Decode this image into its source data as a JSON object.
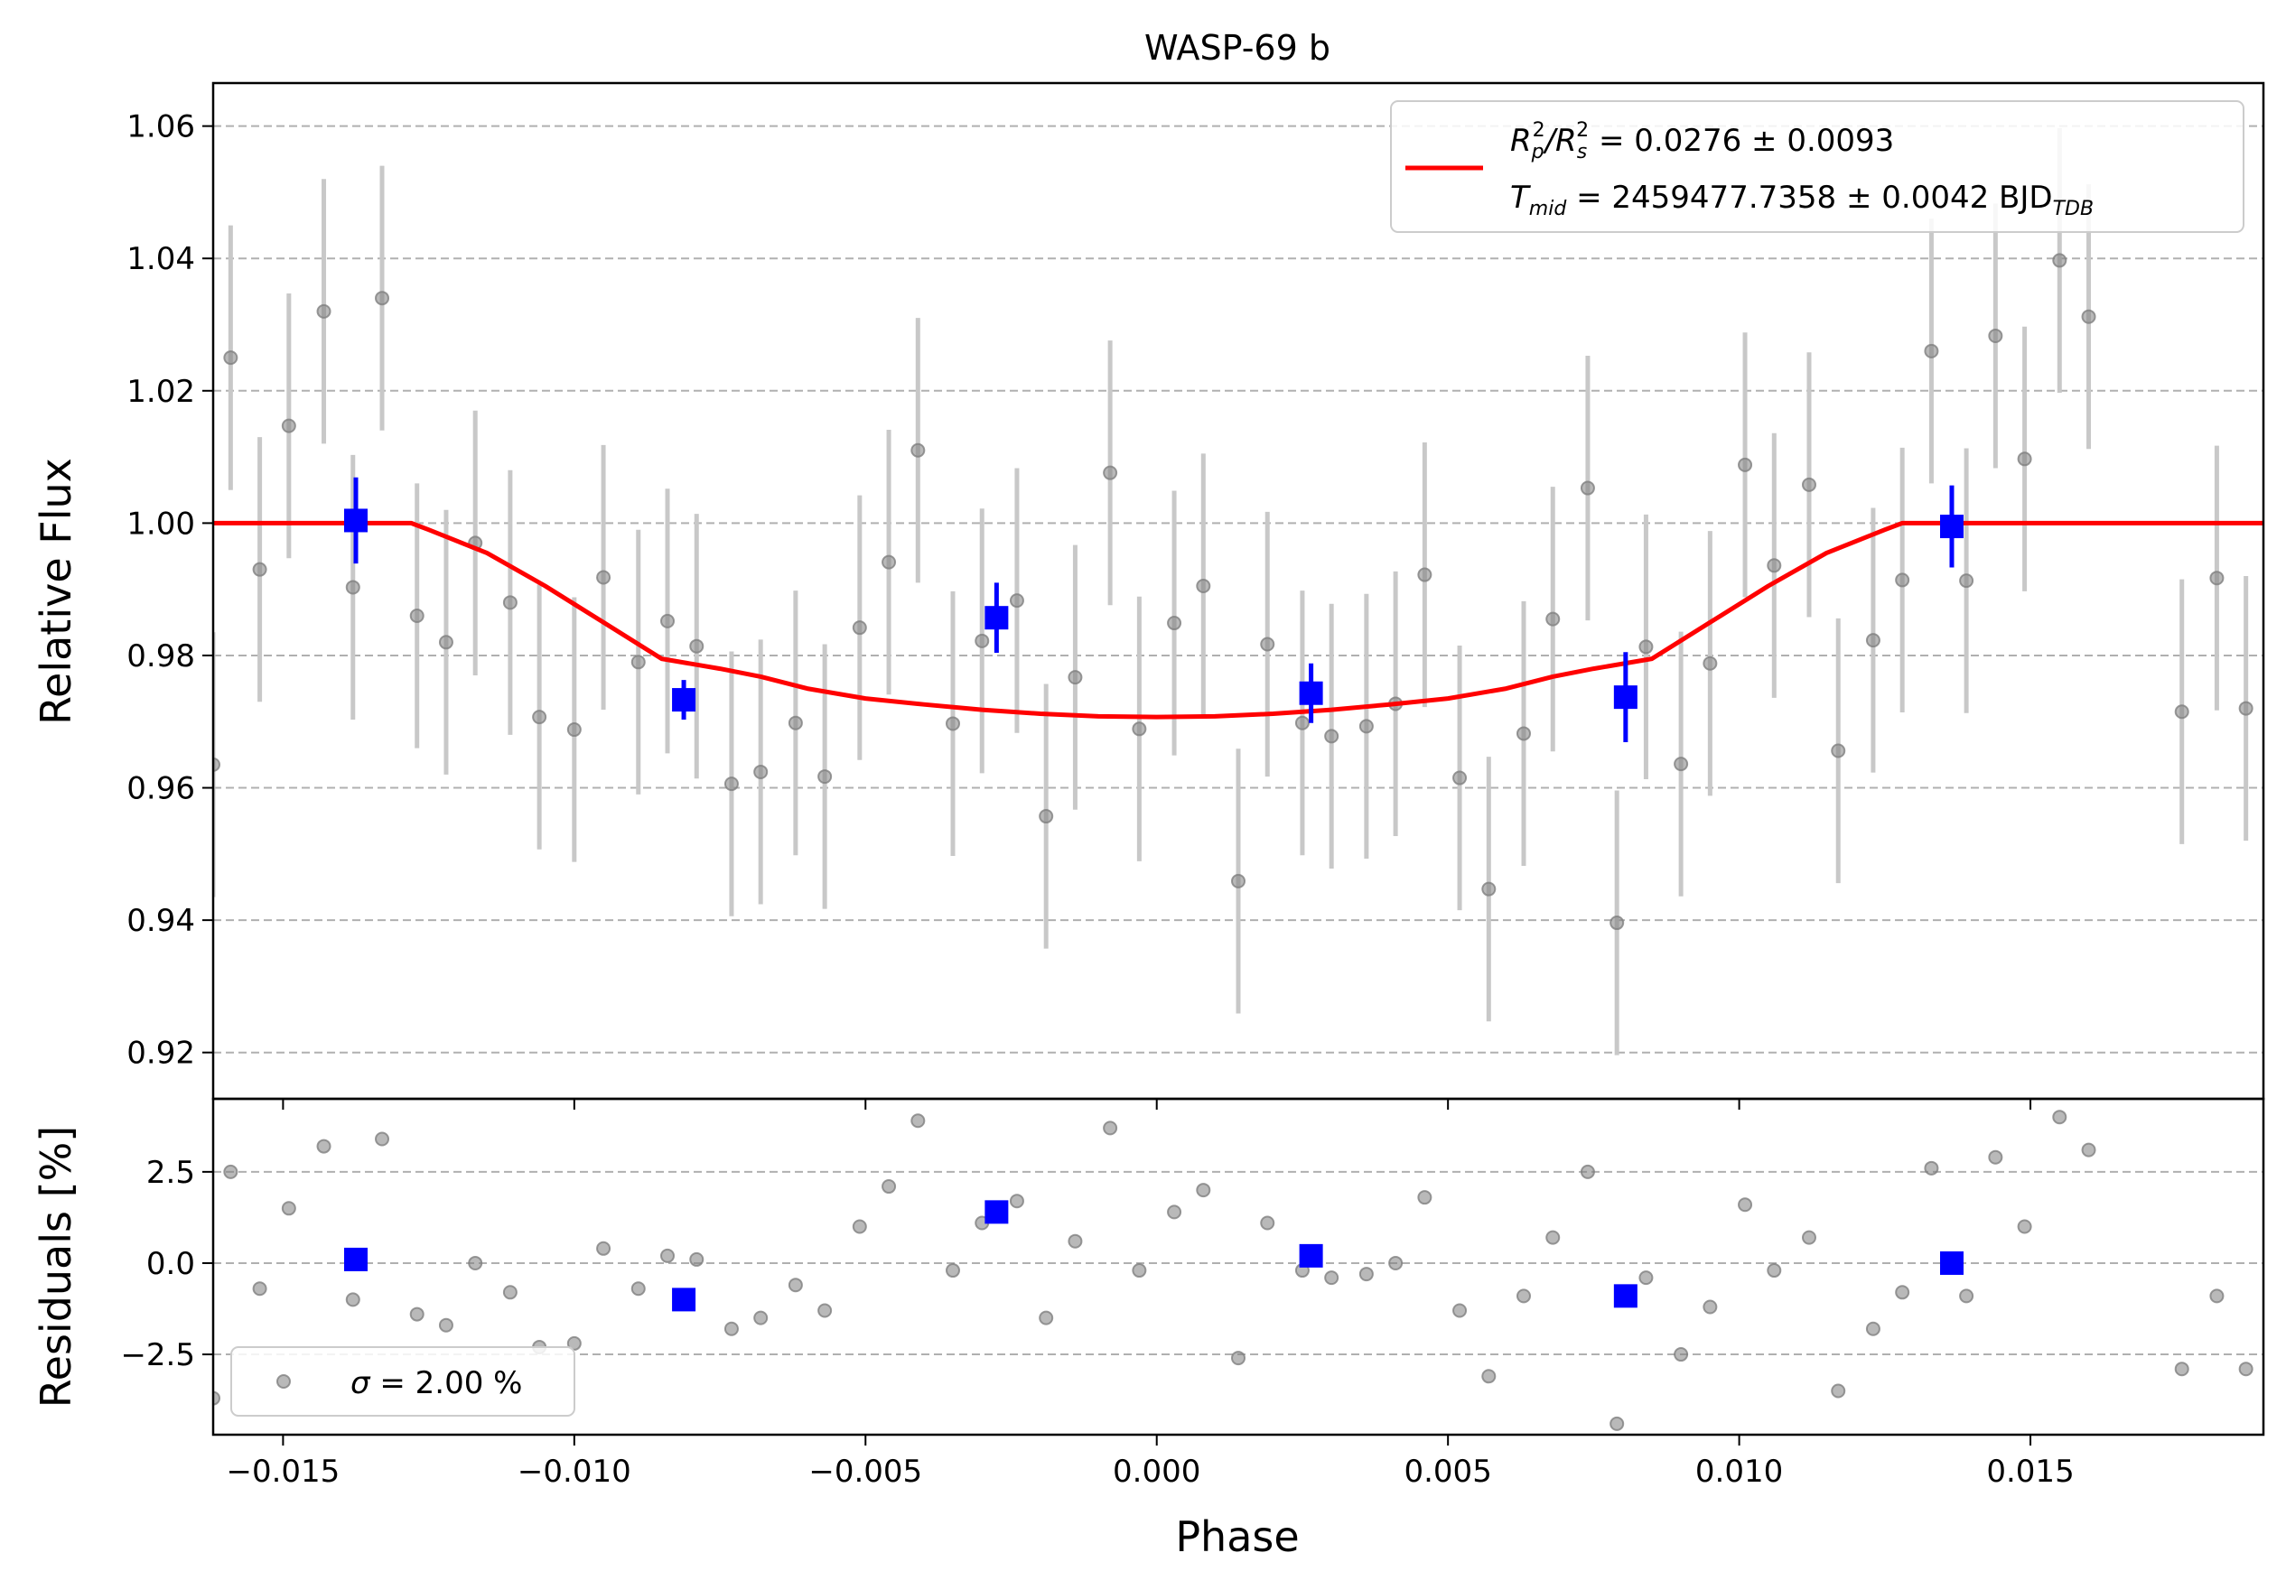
{
  "chart_data": [
    {
      "type": "scatter",
      "title": "WASP-69 b",
      "xlabel": "",
      "ylabel": "Relative Flux",
      "xlim": [
        -0.0162,
        0.019
      ],
      "ylim": [
        0.913,
        1.0665
      ],
      "xticks": [
        -0.015,
        -0.01,
        -0.005,
        0.0,
        0.005,
        0.01,
        0.015
      ],
      "yticks": [
        0.92,
        0.94,
        0.96,
        0.98,
        1.0,
        1.02,
        1.04,
        1.06
      ],
      "ytick_labels": [
        "0.92",
        "0.94",
        "0.96",
        "0.98",
        "1.00",
        "1.02",
        "1.04",
        "1.06"
      ],
      "grid": "horizontal dashed",
      "legend_placement": "top-right",
      "legend": {
        "line1_prefix": "R",
        "line1_sub1": "p",
        "line1_sup1": "2",
        "line1_sep": "/R",
        "line1_sub2": "s",
        "line1_sup2": "2",
        "line1_value": " = 0.0276 ± 0.0093",
        "line2_prefix": "T",
        "line2_sub": "mid",
        "line2_value": " = 2459477.7358 ± 0.0042 BJD",
        "line2_unit_sub": "TDB"
      },
      "colors": {
        "data": "#808080",
        "errorbar": "#c8c8c8",
        "binned": "#0000ff",
        "model": "#ff0000",
        "grid": "#b0b0b0"
      },
      "series": [
        {
          "kind": "raw",
          "error": 0.02,
          "points": [
            [
              -0.0162,
              0.9635
            ],
            [
              -0.0159,
              1.025
            ],
            [
              -0.0154,
              0.993
            ],
            [
              -0.0149,
              1.0147
            ],
            [
              -0.0143,
              1.032
            ],
            [
              -0.0138,
              0.9903
            ],
            [
              -0.0133,
              1.034
            ],
            [
              -0.0127,
              0.986
            ],
            [
              -0.0122,
              0.982
            ],
            [
              -0.0117,
              0.997
            ],
            [
              -0.0111,
              0.988
            ],
            [
              -0.0106,
              0.9707
            ],
            [
              -0.01,
              0.9688
            ],
            [
              -0.0095,
              0.9918
            ],
            [
              -0.0089,
              0.979
            ],
            [
              -0.0084,
              0.9852
            ],
            [
              -0.0079,
              0.9814
            ],
            [
              -0.0073,
              0.9606
            ],
            [
              -0.0068,
              0.9624
            ],
            [
              -0.0062,
              0.9698
            ],
            [
              -0.0057,
              0.9617
            ],
            [
              -0.0051,
              0.9842
            ],
            [
              -0.0046,
              0.9941
            ],
            [
              -0.0041,
              1.011
            ],
            [
              -0.0035,
              0.9697
            ],
            [
              -0.003,
              0.9822
            ],
            [
              -0.0024,
              0.9883
            ],
            [
              -0.0019,
              0.9557
            ],
            [
              -0.0014,
              0.9767
            ],
            [
              -0.0008,
              1.0076
            ],
            [
              -0.0003,
              0.9689
            ],
            [
              0.0003,
              0.9849
            ],
            [
              0.0008,
              0.9905
            ],
            [
              0.0014,
              0.9459
            ],
            [
              0.0019,
              0.9817
            ],
            [
              0.0025,
              0.9698
            ],
            [
              0.003,
              0.9678
            ],
            [
              0.0036,
              0.9693
            ],
            [
              0.0041,
              0.9727
            ],
            [
              0.0046,
              0.9922
            ],
            [
              0.0052,
              0.9615
            ],
            [
              0.0057,
              0.9447
            ],
            [
              0.0063,
              0.9682
            ],
            [
              0.0068,
              0.9855
            ],
            [
              0.0074,
              1.0053
            ],
            [
              0.0079,
              0.9396
            ],
            [
              0.0084,
              0.9813
            ],
            [
              0.009,
              0.9636
            ],
            [
              0.0095,
              0.9788
            ],
            [
              0.0101,
              1.0088
            ],
            [
              0.0106,
              0.9936
            ],
            [
              0.0112,
              1.0058
            ],
            [
              0.0117,
              0.9656
            ],
            [
              0.0123,
              0.9823
            ],
            [
              0.0128,
              0.9914
            ],
            [
              0.0133,
              1.026
            ],
            [
              0.0139,
              0.9913
            ],
            [
              0.0144,
              1.0283
            ],
            [
              0.0149,
              1.0097
            ],
            [
              0.0155,
              1.0397
            ],
            [
              0.016,
              1.0312
            ],
            [
              0.0176,
              0.9715
            ],
            [
              0.0182,
              0.9917
            ],
            [
              0.0187,
              0.972
            ]
          ]
        },
        {
          "kind": "binned",
          "points": [
            [
              -0.01375,
              1.0004,
              0.0065
            ],
            [
              -0.00812,
              0.9733,
              0.003
            ],
            [
              -0.00275,
              0.9857,
              0.0053
            ],
            [
              0.00265,
              0.9743,
              0.0045
            ],
            [
              0.00805,
              0.9737,
              0.0068
            ],
            [
              0.01365,
              0.9995,
              0.0062
            ]
          ]
        },
        {
          "kind": "model",
          "points": [
            [
              -0.0162,
              1.0
            ],
            [
              -0.0128,
              1.0
            ],
            [
              -0.0125,
              0.999
            ],
            [
              -0.0115,
              0.9955
            ],
            [
              -0.0105,
              0.9905
            ],
            [
              -0.0095,
              0.985
            ],
            [
              -0.0085,
              0.9795
            ],
            [
              -0.0075,
              0.978
            ],
            [
              -0.0068,
              0.9768
            ],
            [
              -0.006,
              0.975
            ],
            [
              -0.005,
              0.9735
            ],
            [
              -0.004,
              0.9726
            ],
            [
              -0.003,
              0.9718
            ],
            [
              -0.002,
              0.9712
            ],
            [
              -0.001,
              0.9708
            ],
            [
              0.0,
              0.9707
            ],
            [
              0.001,
              0.9708
            ],
            [
              0.002,
              0.9712
            ],
            [
              0.003,
              0.9718
            ],
            [
              0.004,
              0.9726
            ],
            [
              0.005,
              0.9735
            ],
            [
              0.006,
              0.975
            ],
            [
              0.0068,
              0.9768
            ],
            [
              0.0075,
              0.978
            ],
            [
              0.0085,
              0.9795
            ],
            [
              0.0095,
              0.985
            ],
            [
              0.0105,
              0.9905
            ],
            [
              0.0115,
              0.9955
            ],
            [
              0.0125,
              0.999
            ],
            [
              0.0128,
              1.0
            ],
            [
              0.019,
              1.0
            ]
          ]
        }
      ]
    },
    {
      "type": "scatter",
      "xlabel": "Phase",
      "ylabel": "Residuals [%]",
      "xlim": [
        -0.0162,
        0.019
      ],
      "ylim": [
        -4.7,
        4.5
      ],
      "xticks": [
        -0.015,
        -0.01,
        -0.005,
        0.0,
        0.005,
        0.01,
        0.015
      ],
      "xtick_labels": [
        "−0.015",
        "−0.010",
        "−0.005",
        "0.000",
        "0.005",
        "0.010",
        "0.015"
      ],
      "yticks": [
        -2.5,
        0.0,
        2.5
      ],
      "ytick_labels": [
        "−2.5",
        "0.0",
        "2.5"
      ],
      "grid": "horizontal dashed",
      "legend_placement": "bottom-left",
      "legend": {
        "sigma_symbol": "σ",
        "sigma_text": " = 2.00 %"
      },
      "series": [
        {
          "kind": "raw",
          "points": [
            [
              -0.0162,
              -3.7
            ],
            [
              -0.0159,
              2.5
            ],
            [
              -0.0154,
              -0.7
            ],
            [
              -0.0149,
              1.5
            ],
            [
              -0.0143,
              3.2
            ],
            [
              -0.0138,
              -1.0
            ],
            [
              -0.0133,
              3.4
            ],
            [
              -0.0127,
              -1.4
            ],
            [
              -0.0122,
              -1.7
            ],
            [
              -0.0117,
              0.0
            ],
            [
              -0.0111,
              -0.8
            ],
            [
              -0.0106,
              -2.3
            ],
            [
              -0.01,
              -2.2
            ],
            [
              -0.0095,
              0.4
            ],
            [
              -0.0089,
              -0.7
            ],
            [
              -0.0084,
              0.2
            ],
            [
              -0.0079,
              0.1
            ],
            [
              -0.0073,
              -1.8
            ],
            [
              -0.0068,
              -1.5
            ],
            [
              -0.0062,
              -0.6
            ],
            [
              -0.0057,
              -1.3
            ],
            [
              -0.0051,
              1.0
            ],
            [
              -0.0046,
              2.1
            ],
            [
              -0.0041,
              3.9
            ],
            [
              -0.0035,
              -0.2
            ],
            [
              -0.003,
              1.1
            ],
            [
              -0.0024,
              1.7
            ],
            [
              -0.0019,
              -1.5
            ],
            [
              -0.0014,
              0.6
            ],
            [
              -0.0008,
              3.7
            ],
            [
              -0.0003,
              -0.2
            ],
            [
              0.0003,
              1.4
            ],
            [
              0.0008,
              2.0
            ],
            [
              0.0014,
              -2.6
            ],
            [
              0.0019,
              1.1
            ],
            [
              0.0025,
              -0.2
            ],
            [
              0.003,
              -0.4
            ],
            [
              0.0036,
              -0.3
            ],
            [
              0.0041,
              0.0
            ],
            [
              0.0046,
              1.8
            ],
            [
              0.0052,
              -1.3
            ],
            [
              0.0057,
              -3.1
            ],
            [
              0.0063,
              -0.9
            ],
            [
              0.0068,
              0.7
            ],
            [
              0.0074,
              2.5
            ],
            [
              0.0079,
              -4.4
            ],
            [
              0.0084,
              -0.4
            ],
            [
              0.009,
              -2.5
            ],
            [
              0.0095,
              -1.2
            ],
            [
              0.0101,
              1.6
            ],
            [
              0.0106,
              -0.2
            ],
            [
              0.0112,
              0.7
            ],
            [
              0.0117,
              -3.5
            ],
            [
              0.0123,
              -1.8
            ],
            [
              0.0128,
              -0.8
            ],
            [
              0.0133,
              2.6
            ],
            [
              0.0139,
              -0.9
            ],
            [
              0.0144,
              2.9
            ],
            [
              0.0149,
              1.0
            ],
            [
              0.0155,
              4.0
            ],
            [
              0.016,
              3.1
            ],
            [
              0.0176,
              -2.9
            ],
            [
              0.0182,
              -0.9
            ],
            [
              0.0187,
              -2.9
            ]
          ]
        },
        {
          "kind": "binned",
          "points": [
            [
              -0.01375,
              0.1
            ],
            [
              -0.00812,
              -1.0
            ],
            [
              -0.00275,
              1.4
            ],
            [
              0.00265,
              0.2
            ],
            [
              0.00805,
              -0.9
            ],
            [
              0.01365,
              0.0
            ]
          ]
        }
      ]
    }
  ]
}
